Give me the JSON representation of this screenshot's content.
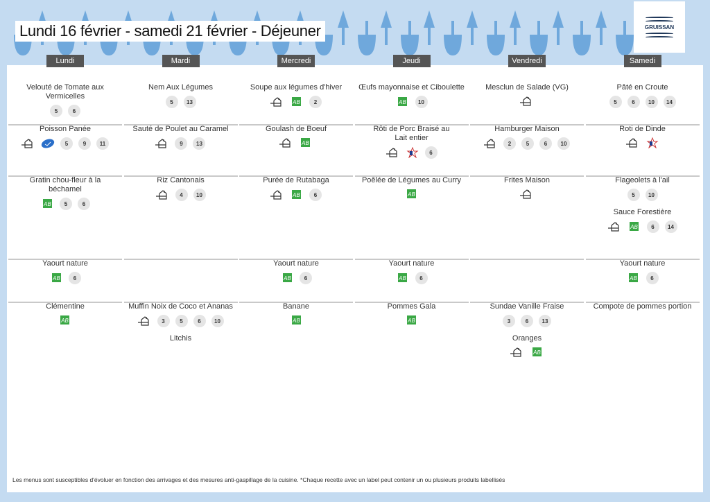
{
  "title": "Lundi 16 février - samedi 21 février  - Déjeuner",
  "logo": {
    "text": "GRUISSAN"
  },
  "colors": {
    "bg": "#c4dbf1",
    "deco": "#6fa8dc",
    "header": "#555555",
    "bio": "#3aa845",
    "msc": "#2a6fc9"
  },
  "days": [
    {
      "label": "Lundi",
      "rows": [
        [
          {
            "name": "Velouté de Tomate aux Vermicelles",
            "icons": [],
            "allergens": [
              "5",
              "6"
            ]
          }
        ],
        [
          {
            "name": "Poisson Panée",
            "icons": [
              "house",
              "msc"
            ],
            "allergens": [
              "5",
              "9",
              "11"
            ]
          }
        ],
        [
          {
            "name": "Gratin chou-fleur à la béchamel",
            "icons": [
              "bio"
            ],
            "allergens": [
              "5",
              "6"
            ]
          }
        ],
        [
          {
            "name": "Yaourt nature",
            "icons": [
              "bio"
            ],
            "allergens": [
              "6"
            ]
          }
        ],
        [
          {
            "name": "Clémentine",
            "icons": [
              "bio"
            ],
            "allergens": []
          }
        ]
      ]
    },
    {
      "label": "Mardi",
      "rows": [
        [
          {
            "name": "Nem Aux Légumes",
            "icons": [],
            "allergens": [
              "5",
              "13"
            ]
          }
        ],
        [
          {
            "name": "Sauté de Poulet au Caramel",
            "icons": [
              "house"
            ],
            "allergens": [
              "9",
              "13"
            ]
          }
        ],
        [
          {
            "name": "Riz Cantonais",
            "icons": [
              "house"
            ],
            "allergens": [
              "4",
              "10"
            ]
          }
        ],
        [],
        [
          {
            "name": "Muffin Noix de Coco et Ananas",
            "icons": [
              "house"
            ],
            "allergens": [
              "3",
              "5",
              "6",
              "10"
            ]
          },
          {
            "name": "Litchis",
            "icons": [],
            "allergens": []
          }
        ]
      ]
    },
    {
      "label": "Mercredi",
      "rows": [
        [
          {
            "name": "Soupe aux légumes d'hiver",
            "icons": [
              "house",
              "bio"
            ],
            "allergens": [
              "2"
            ]
          }
        ],
        [
          {
            "name": "Goulash de Boeuf",
            "icons": [
              "house",
              "bio"
            ],
            "allergens": []
          }
        ],
        [
          {
            "name": "Purée de Rutabaga",
            "icons": [
              "house",
              "bio"
            ],
            "allergens": [
              "6"
            ]
          }
        ],
        [
          {
            "name": "Yaourt nature",
            "icons": [
              "bio"
            ],
            "allergens": [
              "6"
            ]
          }
        ],
        [
          {
            "name": "Banane",
            "icons": [
              "bio"
            ],
            "allergens": []
          }
        ]
      ]
    },
    {
      "label": "Jeudi",
      "rows": [
        [
          {
            "name": "Œufs mayonnaise et Ciboulette",
            "icons": [
              "bio"
            ],
            "allergens": [
              "10"
            ]
          }
        ],
        [
          {
            "name": "Rôti de Porc Braisé au Lait entier",
            "icons": [
              "house",
              "france"
            ],
            "allergens": [
              "6"
            ]
          }
        ],
        [
          {
            "name": "Poêlée de Légumes au Curry",
            "icons": [
              "bio"
            ],
            "allergens": []
          }
        ],
        [
          {
            "name": "Yaourt nature",
            "icons": [
              "bio"
            ],
            "allergens": [
              "6"
            ]
          }
        ],
        [
          {
            "name": "Pommes Gala",
            "icons": [
              "bio"
            ],
            "allergens": []
          }
        ]
      ]
    },
    {
      "label": "Vendredi",
      "rows": [
        [
          {
            "name": "Mesclun de Salade (VG)",
            "icons": [
              "house"
            ],
            "allergens": []
          }
        ],
        [
          {
            "name": "Hamburger Maison",
            "icons": [
              "house"
            ],
            "allergens": [
              "2",
              "5",
              "6",
              "10"
            ]
          }
        ],
        [
          {
            "name": "Frites Maison",
            "icons": [
              "house"
            ],
            "allergens": []
          }
        ],
        [],
        [
          {
            "name": "Sundae Vanille Fraise",
            "icons": [],
            "allergens": [
              "3",
              "6",
              "13"
            ]
          },
          {
            "name": "Oranges",
            "icons": [
              "house",
              "bio"
            ],
            "allergens": []
          }
        ]
      ]
    },
    {
      "label": "Samedi",
      "rows": [
        [
          {
            "name": "Pâté en Croute",
            "icons": [],
            "allergens": [
              "5",
              "6",
              "10",
              "14"
            ]
          }
        ],
        [
          {
            "name": "Roti de Dinde",
            "icons": [
              "house",
              "france"
            ],
            "allergens": []
          }
        ],
        [
          {
            "name": "Flageolets à l'ail",
            "icons": [],
            "allergens": [
              "5",
              "10"
            ]
          },
          {
            "name": "Sauce Forestière",
            "icons": [
              "house",
              "bio"
            ],
            "allergens": [
              "6",
              "14"
            ]
          }
        ],
        [
          {
            "name": "Yaourt nature",
            "icons": [
              "bio"
            ],
            "allergens": [
              "6"
            ]
          }
        ],
        [
          {
            "name": "Compote de pommes portion",
            "icons": [],
            "allergens": []
          }
        ]
      ]
    }
  ],
  "footer": "Les menus sont susceptibles d'évoluer en fonction des arrivages et des mesures anti-gaspillage de la cuisine. *Chaque recette avec un label peut contenir un ou plusieurs produits labellisés"
}
